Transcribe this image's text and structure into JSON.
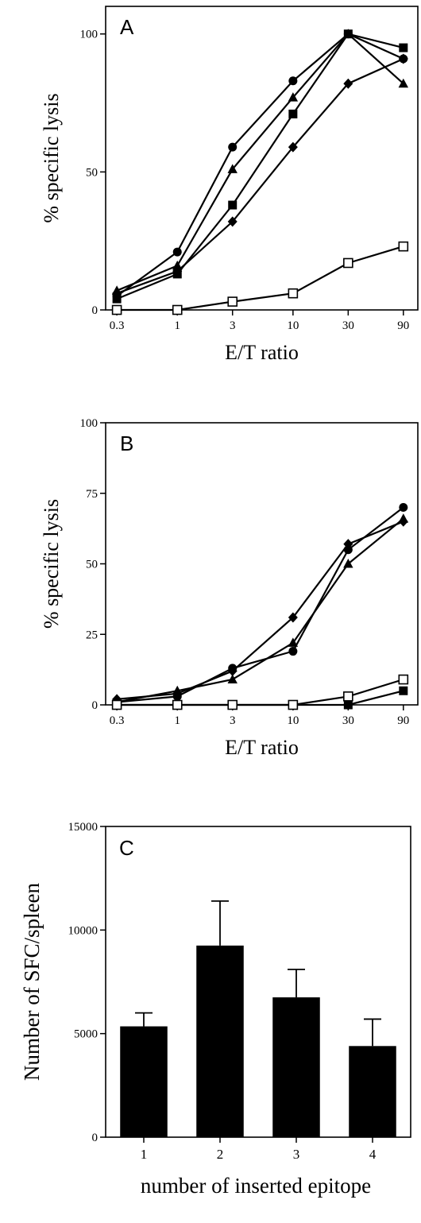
{
  "chart_data": [
    {
      "type": "line",
      "panel_label": "A",
      "xlabel": "E/T ratio",
      "ylabel": "% specific lysis",
      "x_scale": "log",
      "x": [
        0.3,
        1,
        3,
        10,
        30,
        90
      ],
      "xticks": [
        "0.3",
        "1",
        "3",
        "10",
        "30",
        "90"
      ],
      "yticks": [
        0,
        50,
        100
      ],
      "ylim": [
        0,
        110
      ],
      "xlim": [
        0.24,
        120
      ],
      "series": [
        {
          "marker": "circle",
          "values": [
            5,
            21,
            59,
            83,
            100,
            91
          ]
        },
        {
          "marker": "triangle",
          "values": [
            7,
            16,
            51,
            77,
            100,
            82
          ]
        },
        {
          "marker": "square",
          "values": [
            4,
            13,
            38,
            71,
            100,
            95
          ]
        },
        {
          "marker": "diamond",
          "values": [
            6,
            14,
            32,
            59,
            82,
            91
          ]
        },
        {
          "marker": "open-square",
          "values": [
            0,
            0,
            3,
            6,
            17,
            23
          ]
        }
      ]
    },
    {
      "type": "line",
      "panel_label": "B",
      "xlabel": "E/T ratio",
      "ylabel": "% specific lysis",
      "x_scale": "log",
      "x": [
        0.3,
        1,
        3,
        10,
        30,
        90
      ],
      "xticks": [
        "0.3",
        "1",
        "3",
        "10",
        "30",
        "90"
      ],
      "yticks": [
        0,
        25,
        50,
        75,
        100
      ],
      "ylim": [
        0,
        100
      ],
      "xlim": [
        0.24,
        120
      ],
      "series": [
        {
          "marker": "circle",
          "values": [
            1,
            3,
            13,
            19,
            55,
            70
          ]
        },
        {
          "marker": "triangle",
          "values": [
            1,
            5,
            9,
            22,
            50,
            66
          ]
        },
        {
          "marker": "diamond",
          "values": [
            2,
            4,
            12,
            31,
            57,
            65
          ]
        },
        {
          "marker": "square",
          "values": [
            0,
            0,
            0,
            0,
            0,
            5
          ]
        },
        {
          "marker": "open-square",
          "values": [
            0,
            0,
            0,
            0,
            3,
            9
          ]
        }
      ]
    },
    {
      "type": "bar",
      "panel_label": "C",
      "xlabel": "number of inserted epitope",
      "ylabel": "Number of SFC/spleen",
      "categories": [
        "1",
        "2",
        "3",
        "4"
      ],
      "values": [
        5350,
        9250,
        6750,
        4400
      ],
      "errors": [
        650,
        2150,
        1350,
        1300
      ],
      "yticks": [
        0,
        5000,
        10000,
        15000
      ],
      "ylim": [
        0,
        15000
      ]
    }
  ]
}
